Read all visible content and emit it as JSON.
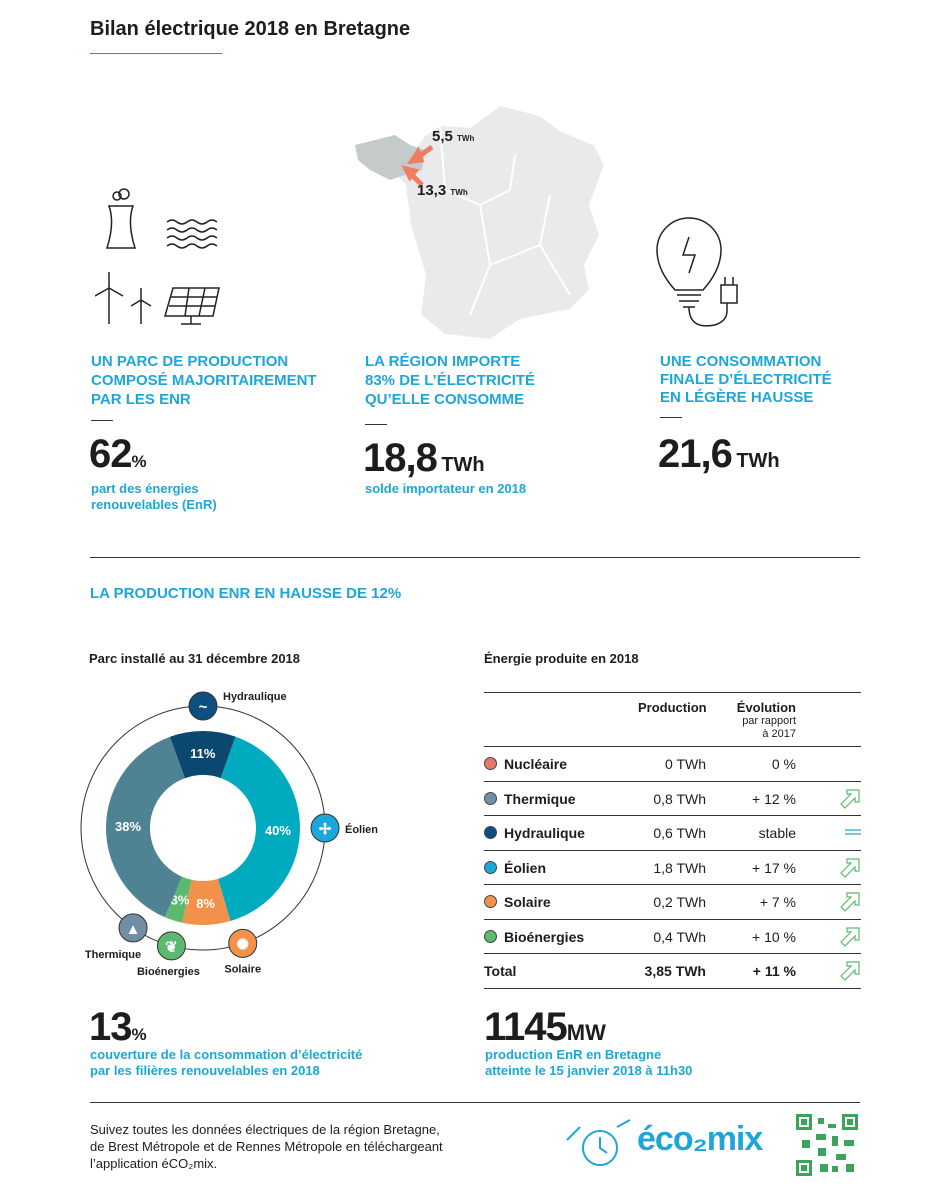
{
  "title": "Bilan électrique 2018 en Bretagne",
  "col1": {
    "heading": [
      "UN PARC DE PRODUCTION",
      "COMPOSÉ MAJORITAIREMENT",
      "PAR LES ENR"
    ],
    "value": "62",
    "unit": "%",
    "sub": [
      "part des énergies",
      "renouvelables (EnR)"
    ]
  },
  "col2": {
    "heading": [
      "LA RÉGION IMPORTE",
      "83% DE L’ÉLECTRICITÉ",
      "QU’ELLE CONSOMME"
    ],
    "value": "18,8",
    "unit": "TWh",
    "sub": [
      "solde importateur en 2018"
    ],
    "map_flows": [
      {
        "value": "5,5",
        "unit": "TWh"
      },
      {
        "value": "13,3",
        "unit": "TWh"
      }
    ]
  },
  "col3": {
    "heading": [
      "UNE CONSOMMATION",
      "FINALE D’ÉLECTRICITÉ",
      "EN LÉGÈRE HAUSSE"
    ],
    "value": "21,6",
    "unit": "TWh"
  },
  "section_title": "LA PRODUCTION ENR EN HAUSSE DE 12%",
  "parc": {
    "title": "Parc installé au 31 décembre 2018",
    "segments": [
      {
        "name": "Hydraulique",
        "label": "11%",
        "value": 11,
        "color": "#0b4870",
        "icon_color": "#0d4f80"
      },
      {
        "name": "Éolien",
        "label": "40%",
        "value": 40,
        "color": "#00aabf",
        "icon_color": "#1aa7d9"
      },
      {
        "name": "Solaire",
        "label": "8%",
        "value": 8,
        "color": "#f2924a",
        "icon_color": "#f2924a"
      },
      {
        "name": "Bioénergies",
        "label": "3%",
        "value": 3,
        "color": "#5bba6f",
        "icon_color": "#5bba6f"
      },
      {
        "name": "Thermique",
        "label": "38%",
        "value": 38,
        "color": "#4f8393",
        "icon_color": "#6f8fa6"
      }
    ]
  },
  "energie": {
    "title": "Énergie produite en 2018",
    "col_production": "Production",
    "col_evolution": "Évolution",
    "col_evolution_sub": [
      "par rapport",
      "à 2017"
    ],
    "rows": [
      {
        "name": "Nucléaire",
        "production": "0 TWh",
        "evolution": "0 %",
        "trend": "none",
        "color": "#e8796a"
      },
      {
        "name": "Thermique",
        "production": "0,8 TWh",
        "evolution": "+ 12 %",
        "trend": "up",
        "color": "#6f8fa6"
      },
      {
        "name": "Hydraulique",
        "production": "0,6 TWh",
        "evolution": "stable",
        "trend": "stable",
        "color": "#0d4f80"
      },
      {
        "name": "Éolien",
        "production": "1,8 TWh",
        "evolution": "+ 17 %",
        "trend": "up",
        "color": "#1aa7d9"
      },
      {
        "name": "Solaire",
        "production": "0,2 TWh",
        "evolution": "+ 7 %",
        "trend": "up",
        "color": "#f2924a"
      },
      {
        "name": "Bioénergies",
        "production": "0,4 TWh",
        "evolution": "+ 10 %",
        "trend": "up",
        "color": "#5bba6f"
      },
      {
        "name": "Total",
        "production": "3,85 TWh",
        "evolution": "+ 11 %",
        "trend": "up",
        "color": ""
      }
    ]
  },
  "stat1": {
    "value": "13",
    "unit": "%",
    "sub": [
      "couverture de la consommation d’électricité",
      "par les filières renouvelables en 2018"
    ]
  },
  "stat2": {
    "value": "1145",
    "unit": "MW",
    "sub": [
      "production EnR en Bretagne",
      "atteinte le 15 janvier 2018 à 11h30"
    ]
  },
  "footer": {
    "text": [
      "Suivez toutes les données électriques de la région Bretagne,",
      "de Brest Métropole et de Rennes Métropole en téléchargeant",
      "l’application éCO₂mix."
    ],
    "logo": "éco₂mix"
  }
}
